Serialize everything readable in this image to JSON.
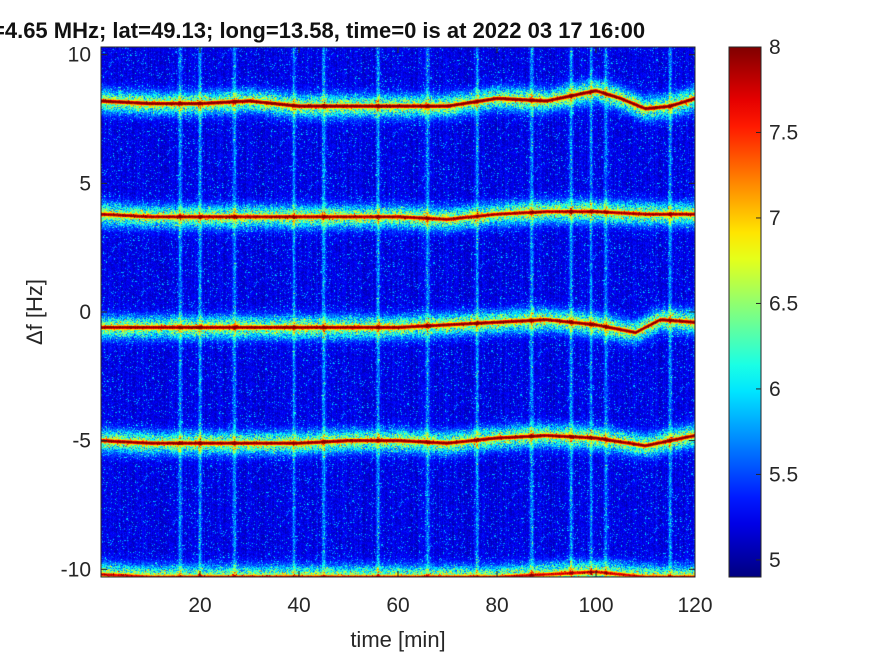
{
  "chart_data": {
    "type": "heatmap",
    "title": "=4.65 MHz;  lat=49.13; long=13.58, time=0 is at 2022 03 17 16:00",
    "xlabel": "time [min]",
    "ylabel": "Δf [Hz]",
    "xlim": [
      0,
      120
    ],
    "ylim": [
      -10.3,
      10.3
    ],
    "x_ticks": [
      20,
      40,
      60,
      80,
      100,
      120
    ],
    "y_ticks": [
      -10,
      -5,
      0,
      5,
      10
    ],
    "x_tick_labels": [
      "20",
      "40",
      "60",
      "80",
      "100",
      "120"
    ],
    "y_tick_labels": [
      "-10",
      "-5",
      "0",
      "5",
      "10"
    ],
    "colorbar": {
      "colormap": "jet",
      "range": [
        4.9,
        8.0
      ],
      "ticks": [
        5,
        5.5,
        6,
        6.5,
        7,
        7.5,
        8
      ],
      "tick_labels": [
        "5",
        "5.5",
        "6",
        "6.5",
        "7",
        "7.5",
        "8"
      ]
    },
    "background_level": 5.0,
    "ridges": [
      {
        "x": [
          0,
          10,
          20,
          30,
          40,
          50,
          60,
          70,
          80,
          90,
          100,
          105,
          110,
          115,
          120
        ],
        "y": [
          8.2,
          8.1,
          8.1,
          8.2,
          8.0,
          8.0,
          8.0,
          8.0,
          8.3,
          8.2,
          8.6,
          8.3,
          7.9,
          8.0,
          8.3
        ],
        "peak": 8.0
      },
      {
        "x": [
          0,
          10,
          20,
          30,
          40,
          50,
          60,
          70,
          80,
          90,
          100,
          110,
          120
        ],
        "y": [
          3.8,
          3.7,
          3.7,
          3.7,
          3.7,
          3.7,
          3.7,
          3.6,
          3.8,
          3.9,
          3.9,
          3.8,
          3.8
        ],
        "peak": 7.8
      },
      {
        "x": [
          0,
          10,
          20,
          30,
          40,
          50,
          60,
          70,
          80,
          90,
          100,
          108,
          113,
          120
        ],
        "y": [
          -0.6,
          -0.6,
          -0.6,
          -0.6,
          -0.6,
          -0.6,
          -0.6,
          -0.5,
          -0.4,
          -0.3,
          -0.5,
          -0.8,
          -0.3,
          -0.4
        ],
        "peak": 7.9
      },
      {
        "x": [
          0,
          10,
          20,
          30,
          40,
          50,
          60,
          70,
          80,
          90,
          100,
          110,
          120
        ],
        "y": [
          -5.0,
          -5.1,
          -5.1,
          -5.1,
          -5.1,
          -5.0,
          -5.0,
          -5.1,
          -4.9,
          -4.8,
          -4.9,
          -5.2,
          -4.8
        ],
        "peak": 7.9
      },
      {
        "x": [
          0,
          10,
          20,
          30,
          40,
          50,
          60,
          70,
          80,
          90,
          100,
          110,
          120
        ],
        "y": [
          -10.2,
          -10.3,
          -10.3,
          -10.3,
          -10.3,
          -10.3,
          -10.3,
          -10.3,
          -10.3,
          -10.2,
          -10.1,
          -10.3,
          -10.3
        ],
        "peak": 7.6
      }
    ],
    "vertical_streaks_x": [
      16,
      20,
      27,
      39,
      45,
      56,
      66,
      76,
      87,
      95,
      99,
      102,
      115
    ]
  }
}
